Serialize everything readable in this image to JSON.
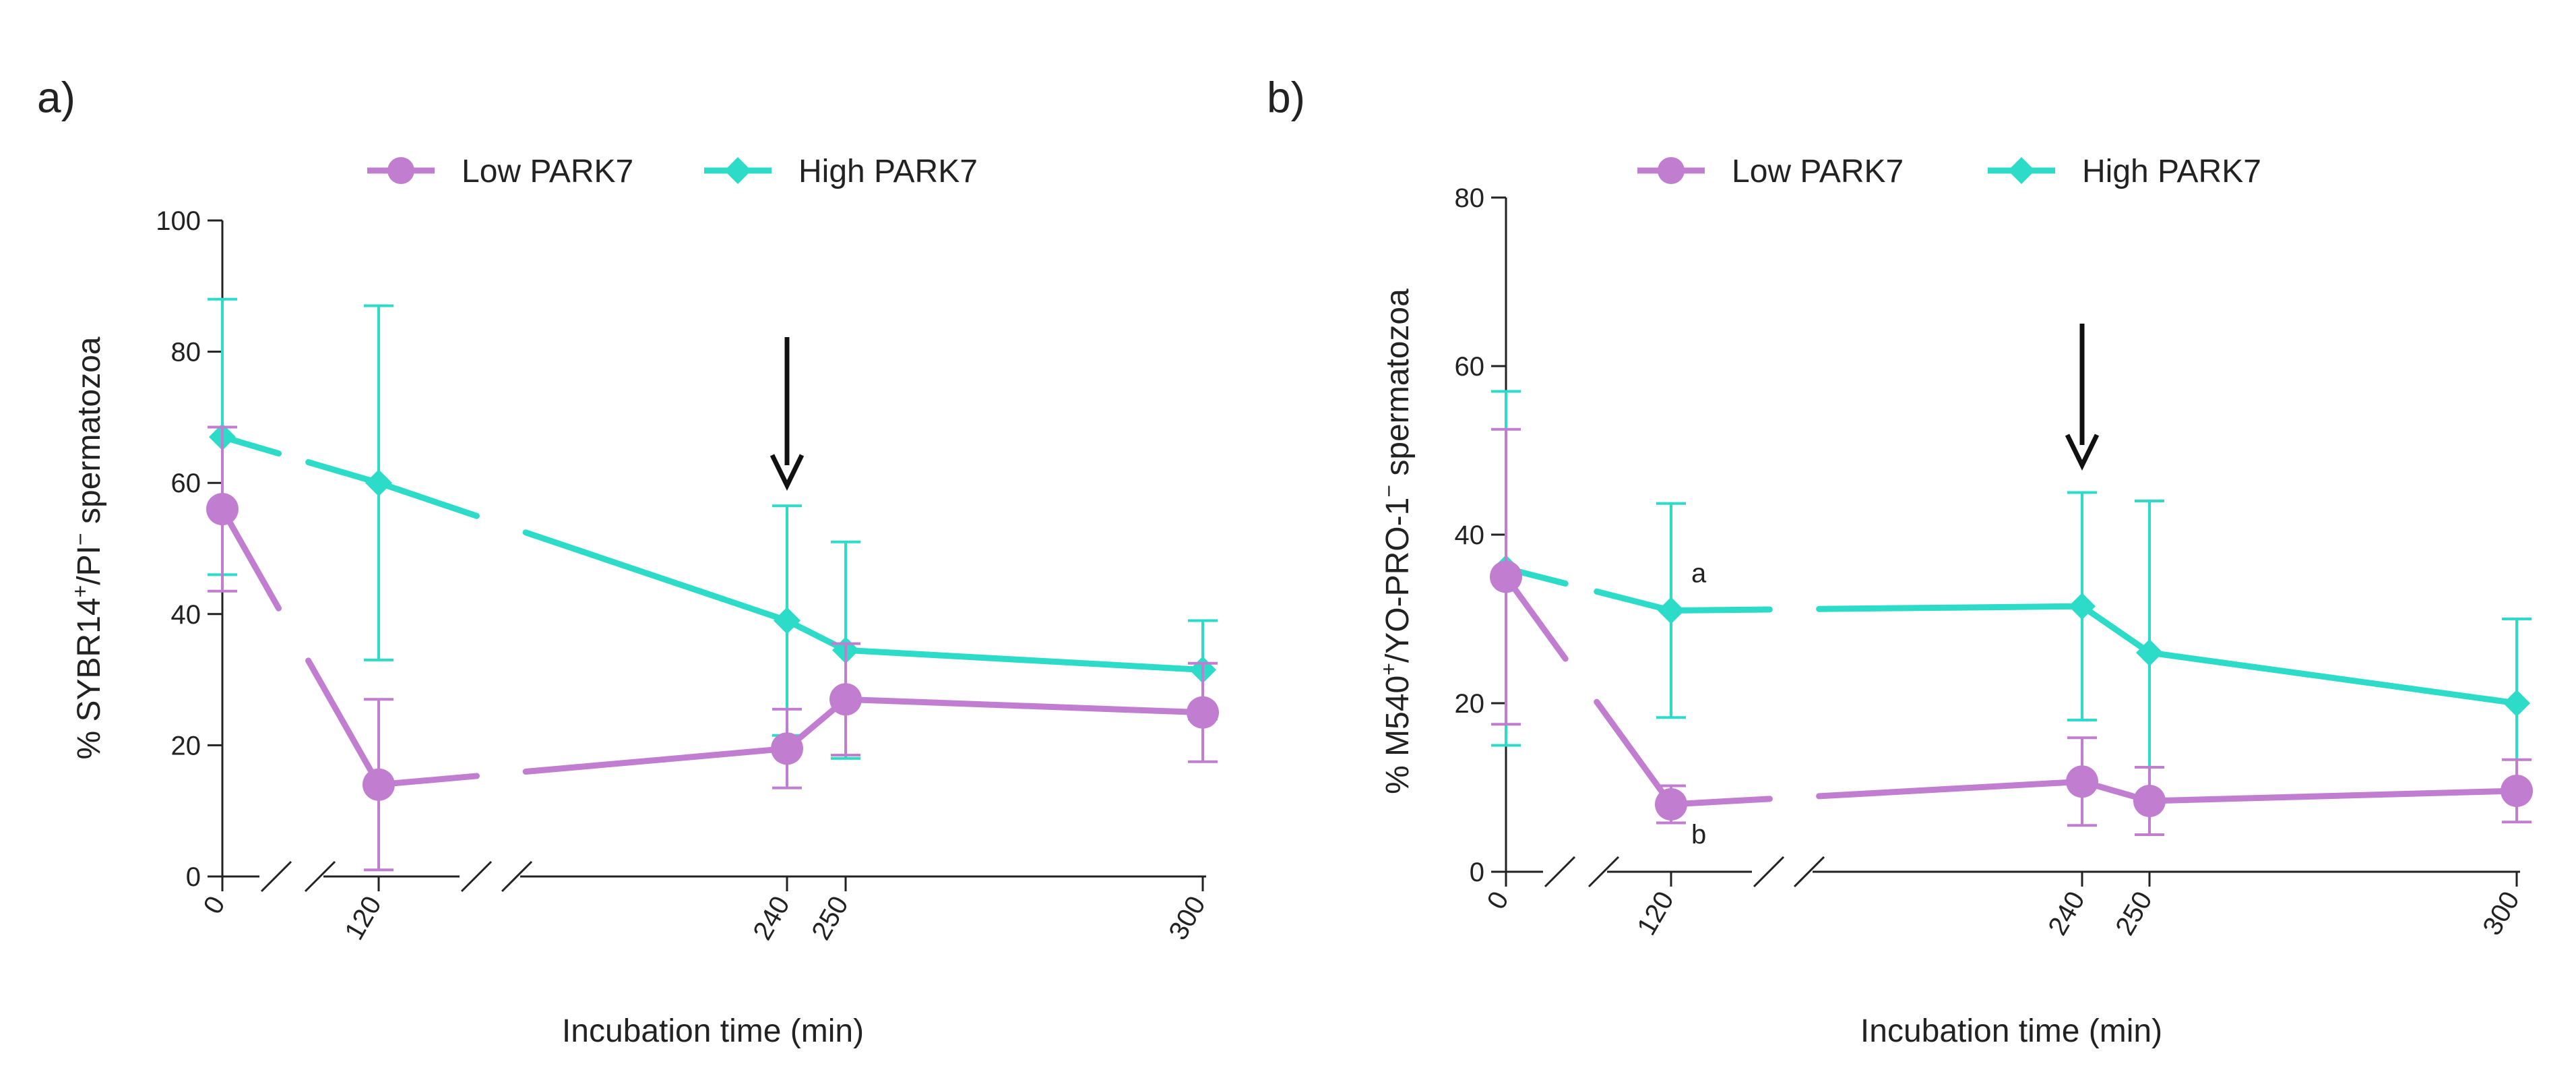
{
  "legend": {
    "low": "Low PARK7",
    "high": "High PARK7"
  },
  "colors": {
    "low": "#C17ED1",
    "high": "#2DDBC9",
    "axis": "#222222",
    "arrow": "#111111"
  },
  "chart_data": [
    {
      "panel": "a)",
      "type": "line",
      "title": "",
      "xlabel": "Incubation time (min)",
      "ylabel_parts": [
        "% SYBR14",
        "+",
        "/PI",
        "−",
        " spermatozoa"
      ],
      "ylim": [
        0,
        100
      ],
      "yticks": [
        0,
        20,
        40,
        60,
        80,
        100
      ],
      "x": [
        0,
        120,
        240,
        250,
        300
      ],
      "xtick_labels": [
        "0",
        "120",
        "240",
        "250",
        "300"
      ],
      "arrow_at_x": 240,
      "series": [
        {
          "key": "high",
          "name": "High PARK7",
          "values": [
            67,
            60,
            39,
            34.5,
            31.5
          ],
          "err": [
            21,
            27,
            17.5,
            16.5,
            7.5
          ]
        },
        {
          "key": "low",
          "name": "Low PARK7",
          "values": [
            56,
            14,
            19.5,
            27,
            25
          ],
          "err": [
            12.5,
            13,
            6,
            8.5,
            7.5
          ]
        }
      ],
      "annotations": []
    },
    {
      "panel": "b)",
      "type": "line",
      "title": "",
      "xlabel": "Incubation time (min)",
      "ylabel_parts": [
        "% M540",
        "+",
        "/YO-PRO-1",
        "−",
        " spermatozoa"
      ],
      "ylim": [
        0,
        80
      ],
      "yticks": [
        0,
        20,
        40,
        60,
        80
      ],
      "x": [
        0,
        120,
        240,
        250,
        300
      ],
      "xtick_labels": [
        "0",
        "120",
        "240",
        "250",
        "300"
      ],
      "arrow_at_x": 240,
      "series": [
        {
          "key": "high",
          "name": "High PARK7",
          "values": [
            36,
            31,
            31.5,
            26,
            20
          ],
          "err": [
            21,
            12.7,
            13.5,
            18,
            10
          ]
        },
        {
          "key": "low",
          "name": "Low PARK7",
          "values": [
            35,
            8,
            10.7,
            8.4,
            9.6
          ],
          "err": [
            17.5,
            2.2,
            5.2,
            4,
            3.7
          ]
        }
      ],
      "annotations": [
        {
          "text": "a",
          "x": 120,
          "y": 35.5
        },
        {
          "text": "b",
          "x": 120,
          "y": 4.5
        }
      ]
    }
  ]
}
